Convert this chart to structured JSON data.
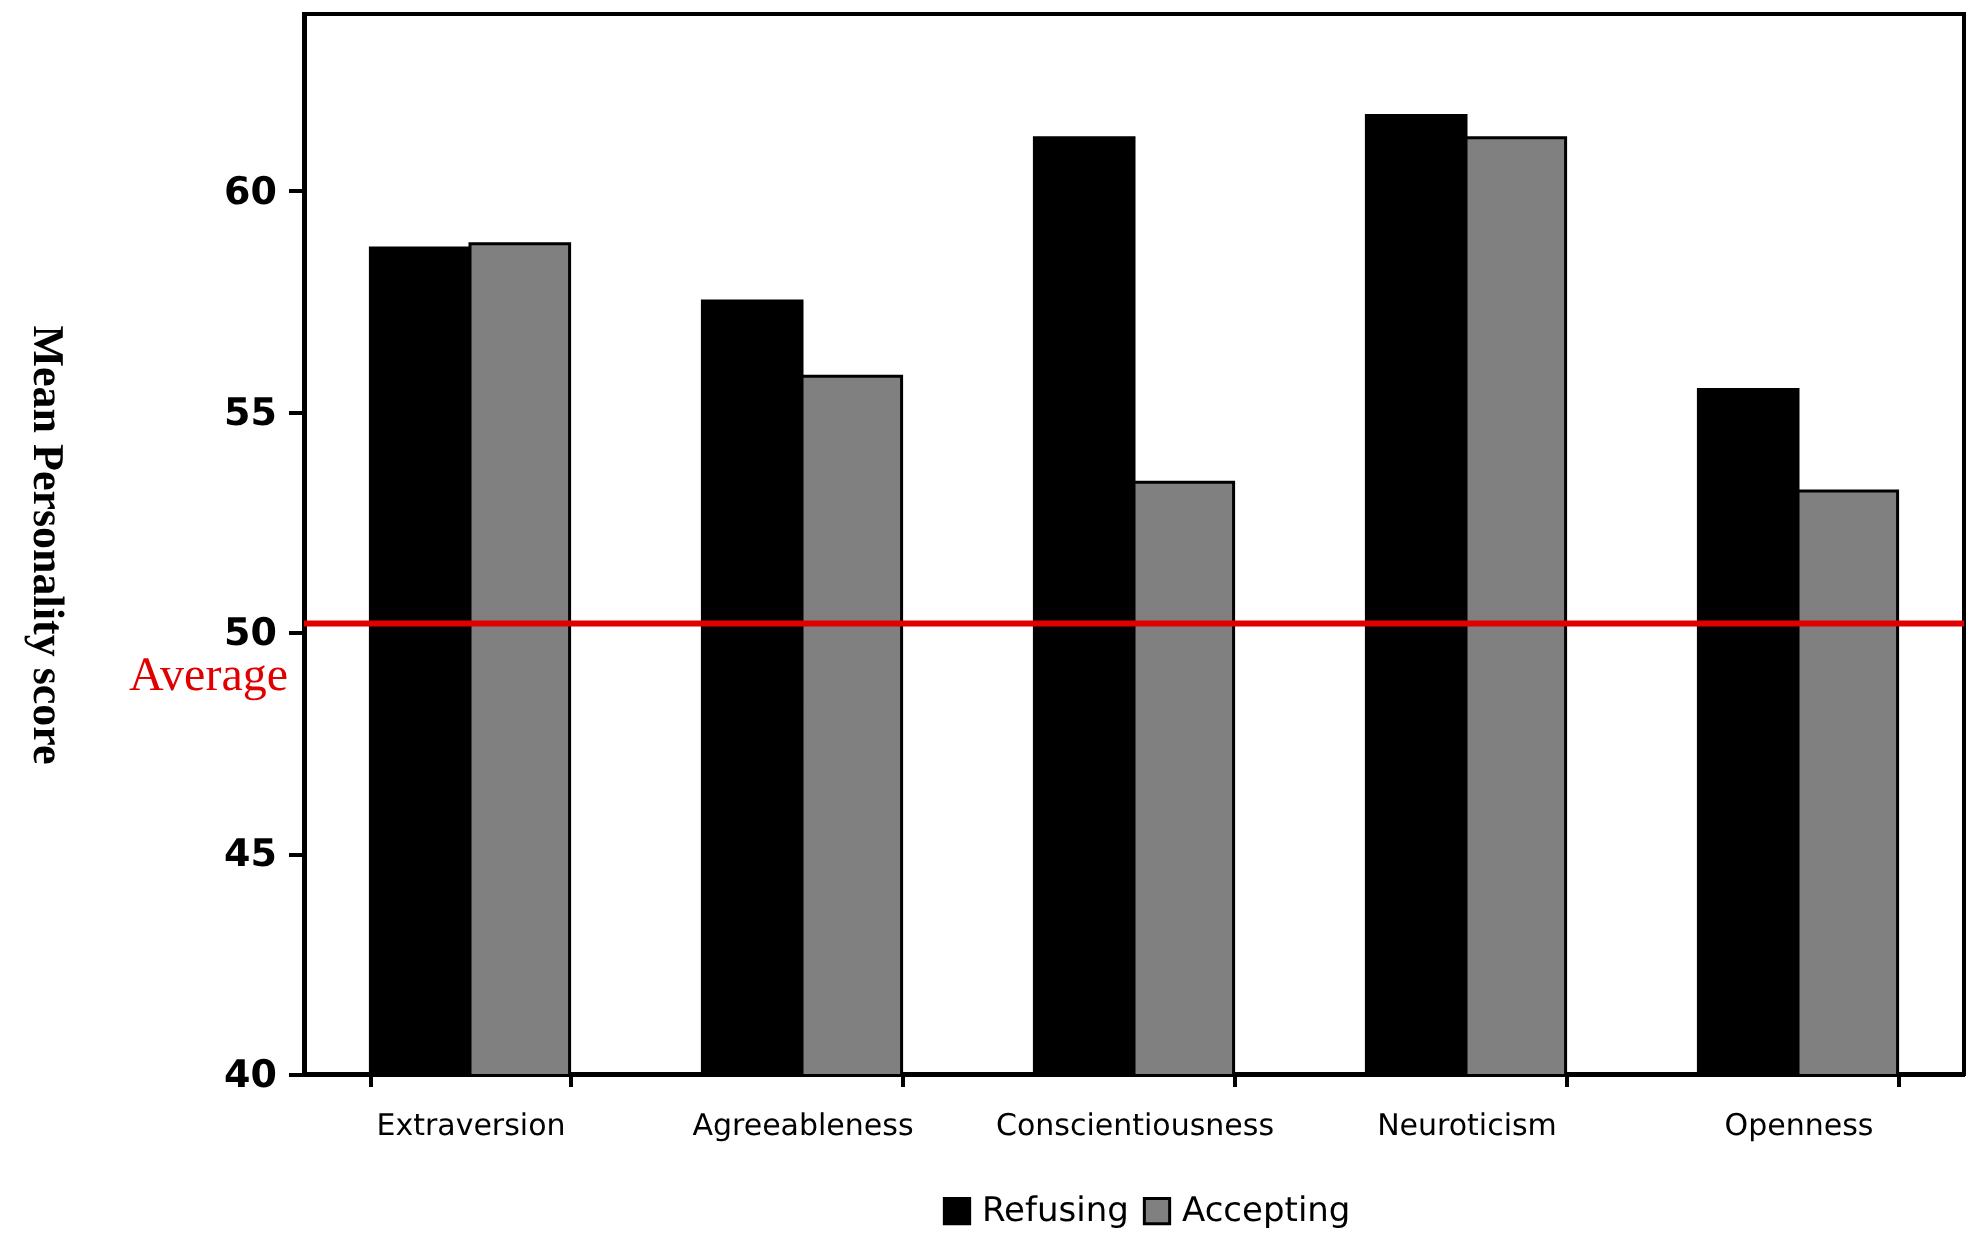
{
  "chart_data": {
    "type": "bar",
    "ylabel": "Mean Personality score",
    "categories": [
      "Extraversion",
      "Agreeableness",
      "Conscientiousness",
      "Neuroticism",
      "Openness"
    ],
    "series": [
      {
        "name": "Refusing",
        "color": "#000000",
        "values": [
          58.7,
          57.5,
          61.2,
          61.7,
          55.5
        ]
      },
      {
        "name": "Accepting",
        "color": "#808080",
        "values": [
          58.8,
          55.8,
          53.4,
          61.2,
          53.2
        ]
      }
    ],
    "ylim": [
      40,
      64
    ],
    "yticks": [
      40,
      45,
      50,
      55,
      60
    ],
    "grid": false,
    "legend": "bottom",
    "ref_lines": [
      {
        "axis": "y",
        "value": 50.2,
        "label": "Average",
        "color": "#e00000"
      }
    ]
  }
}
